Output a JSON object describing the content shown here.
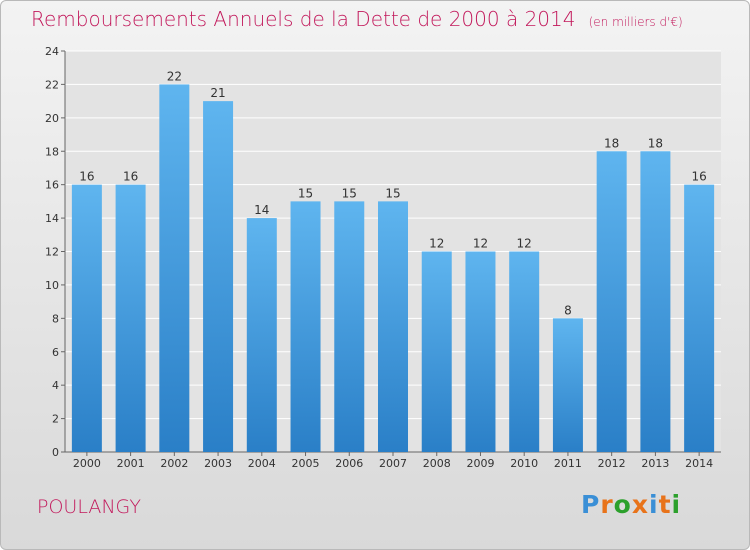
{
  "title": "Remboursements Annuels de la Dette de 2000 à 2014",
  "unit_note": "(en milliers d'€)",
  "city": "POULANGY",
  "logo": {
    "text": "Proxiti",
    "letters": [
      "P",
      "r",
      "o",
      "x",
      "i",
      "t",
      "i"
    ],
    "colors": [
      "#3a8fd6",
      "#e8731a",
      "#2ca02c",
      "#e8731a",
      "#3a8fd6",
      "#e8731a",
      "#2ca02c"
    ]
  },
  "colors": {
    "title": "#c2185b",
    "bar": "#3d9be6",
    "bar_light": "#5fb5ef",
    "bar_dark": "#2a7fc7"
  },
  "chart_data": {
    "type": "bar",
    "categories": [
      "2000",
      "2001",
      "2002",
      "2003",
      "2004",
      "2005",
      "2006",
      "2007",
      "2008",
      "2009",
      "2010",
      "2011",
      "2012",
      "2013",
      "2014"
    ],
    "values": [
      16,
      16,
      22,
      21,
      14,
      15,
      15,
      15,
      12,
      12,
      12,
      8,
      18,
      18,
      16
    ],
    "yticks": [
      0,
      2,
      4,
      6,
      8,
      10,
      12,
      14,
      16,
      18,
      20,
      22,
      24
    ],
    "ylim": [
      0,
      24
    ],
    "grid": true,
    "legend": "none"
  }
}
